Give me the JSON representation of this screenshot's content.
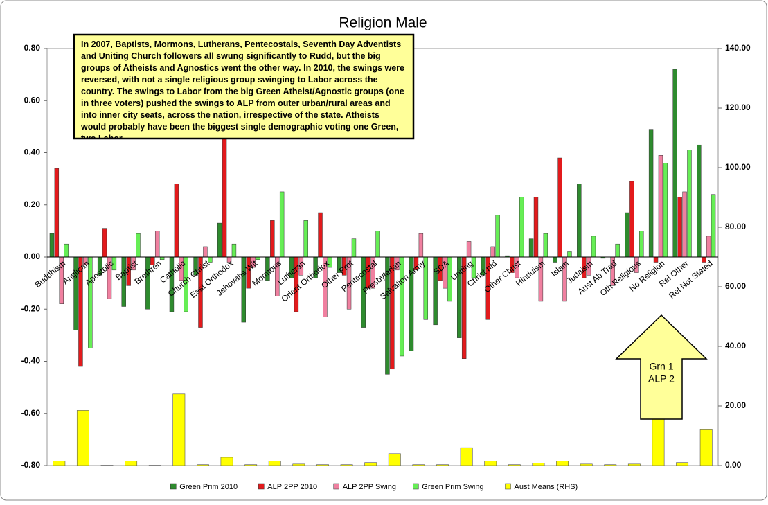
{
  "chart_data": {
    "type": "bar",
    "title": "Religion Male",
    "categories": [
      "Buddhism",
      "Anglican",
      "Apostolic",
      "Baptist",
      "Brethren",
      "Catholic",
      "Church Christ",
      "East Orthodox",
      "Jehovahs Wit",
      "Mormons",
      "Lutheran",
      "Orient Orthodox",
      "Other Prot",
      "Pentecostal",
      "Presbyterian",
      "Salvation Army",
      "SDA",
      "Uniting",
      "Christ nfd",
      "Other Christ",
      "Hinduism",
      "Islam",
      "Judaism",
      "Aust Ab Trad",
      "Oth Religious",
      "No Religion",
      "Rel Other",
      "Rel Not Stated"
    ],
    "series": [
      {
        "name": "Green Prim 2010",
        "color": "#2e8b2e",
        "values": [
          0.09,
          -0.28,
          -0.07,
          -0.19,
          -0.2,
          -0.21,
          -0.07,
          0.13,
          -0.25,
          -0.09,
          -0.08,
          -0.08,
          -0.06,
          -0.27,
          -0.45,
          -0.36,
          -0.26,
          -0.31,
          -0.07,
          0.005,
          0.07,
          -0.02,
          0.28,
          -0.005,
          0.17,
          0.49,
          0.72,
          0.43
        ]
      },
      {
        "name": "ALP 2PP 2010",
        "color": "#e31a1c",
        "values": [
          0.34,
          -0.42,
          0.11,
          -0.11,
          -0.03,
          0.28,
          -0.27,
          0.47,
          -0.12,
          0.14,
          -0.21,
          0.17,
          -0.07,
          -0.12,
          -0.43,
          -0.05,
          -0.09,
          -0.39,
          -0.24,
          -0.06,
          0.23,
          0.38,
          -0.08,
          0.0,
          0.29,
          -0.02,
          0.23,
          -0.02
        ]
      },
      {
        "name": "ALP 2PP Swing",
        "color": "#f080a0",
        "values": [
          -0.18,
          -0.03,
          -0.16,
          -0.05,
          0.1,
          -0.09,
          0.04,
          -0.02,
          -0.04,
          -0.15,
          -0.07,
          -0.23,
          -0.2,
          -0.12,
          -0.05,
          0.09,
          -0.12,
          0.06,
          0.04,
          -0.08,
          -0.17,
          -0.17,
          -0.07,
          -0.11,
          -0.06,
          0.39,
          0.25,
          0.08
        ]
      },
      {
        "name": "Green Prim Swing",
        "color": "#66ee55",
        "values": [
          0.05,
          -0.35,
          -0.05,
          0.09,
          -0.01,
          -0.21,
          -0.02,
          0.05,
          -0.01,
          0.25,
          0.14,
          -0.04,
          0.07,
          0.1,
          -0.38,
          -0.24,
          -0.17,
          -0.08,
          0.16,
          0.23,
          0.09,
          0.02,
          0.08,
          0.05,
          0.1,
          0.36,
          0.41,
          0.24
        ]
      },
      {
        "name": "Aust Means (RHS)",
        "color": "#ffff00",
        "axis": "y2",
        "values": [
          1.5,
          18.5,
          0.1,
          1.5,
          0.1,
          24,
          0.3,
          2.8,
          0.3,
          1.5,
          0.5,
          0.3,
          0.3,
          1,
          4,
          0.3,
          0.3,
          6,
          1.5,
          0.3,
          0.8,
          1.5,
          0.5,
          0.3,
          0.5,
          20.5,
          1,
          12
        ]
      }
    ],
    "ylim": [
      -0.8,
      0.8
    ],
    "yticks": [
      {
        "value": -0.8,
        "label": "-0.80"
      },
      {
        "value": -0.6,
        "label": "-0.60"
      },
      {
        "value": -0.4,
        "label": "-0.40"
      },
      {
        "value": -0.2,
        "label": "-0.20"
      },
      {
        "value": 0,
        "label": "0.00"
      },
      {
        "value": 0.2,
        "label": "0.20"
      },
      {
        "value": 0.4,
        "label": "0.40"
      },
      {
        "value": 0.6,
        "label": "0.60"
      },
      {
        "value": 0.8,
        "label": "0.80"
      }
    ],
    "y2lim": [
      0,
      140
    ],
    "y2ticks": [
      {
        "value": 0,
        "label": "0.00"
      },
      {
        "value": 20,
        "label": "20.00"
      },
      {
        "value": 40,
        "label": "40.00"
      },
      {
        "value": 60,
        "label": "60.00"
      },
      {
        "value": 80,
        "label": "80.00"
      },
      {
        "value": 100,
        "label": "100.00"
      },
      {
        "value": 120,
        "label": "120.00"
      },
      {
        "value": 140,
        "label": "140.00"
      }
    ],
    "annotations": [
      "In 2007, Baptists, Mormons, Lutherans, Pentecostals, Seventh Day Adventists and Uniting Church followers all swung significantly to Rudd, but the big groups of Atheists and Agnostics went the other way. In 2010, the swings were reversed, with not a single religious group swinging to Labor across the country. The swings to Labor from the big Green Atheist/Agnostic groups (one in three voters) pushed the swings to ALP from outer urban/rural areas and into inner city seats, across the nation, irrespective of the state. Atheists would probably have been the biggest single demographic voting one Green, two Labor.",
      "Grn 1",
      "ALP 2"
    ],
    "legend": "bottom"
  }
}
